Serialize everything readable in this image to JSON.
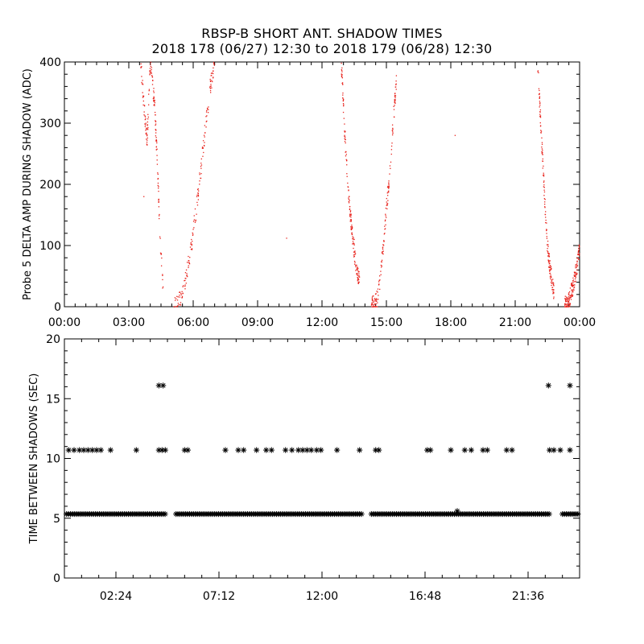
{
  "title": {
    "line1": "RBSP-B SHORT ANT. SHADOW TIMES",
    "line2": "2018 178 (06/27) 12:30 to 2018 179 (06/28) 12:30"
  },
  "chart_data": [
    {
      "type": "scatter",
      "ylabel": "Probe 5 DELTA AMP DURING SHADOW (ADC)",
      "xlabel": "",
      "xlim": [
        0,
        24
      ],
      "ylim": [
        0,
        400
      ],
      "xticks": [
        "00:00",
        "03:00",
        "06:00",
        "09:00",
        "12:00",
        "15:00",
        "18:00",
        "21:00",
        "00:00"
      ],
      "yticks": [
        "0",
        "100",
        "200",
        "300",
        "400"
      ],
      "marker": "dot",
      "color": "#e8231c",
      "bands": [
        {
          "x": [
            3.55,
            3.7,
            3.85,
            4.0,
            4.2,
            4.35,
            4.45,
            4.6
          ],
          "y": [
            400,
            330,
            270,
            400,
            330,
            220,
            110,
            30
          ]
        },
        {
          "x": [
            5.1,
            5.5,
            5.7,
            5.9,
            6.1,
            6.35,
            6.55,
            6.8,
            7.0
          ],
          "y": [
            3,
            20,
            55,
            95,
            150,
            220,
            290,
            360,
            400
          ]
        },
        {
          "x": [
            12.9,
            13.05,
            13.2,
            13.4,
            13.55,
            13.75
          ],
          "y": [
            400,
            290,
            200,
            120,
            75,
            40
          ]
        },
        {
          "x": [
            14.3,
            14.6,
            14.75,
            14.9,
            15.05,
            15.2,
            15.35,
            15.5
          ],
          "y": [
            2,
            15,
            60,
            120,
            180,
            240,
            320,
            380
          ]
        },
        {
          "x": [
            22.05,
            22.2,
            22.35,
            22.5,
            22.65,
            22.8
          ],
          "y": [
            400,
            290,
            190,
            100,
            55,
            25
          ]
        },
        {
          "x": [
            23.3,
            23.5,
            23.7,
            23.9,
            24.0
          ],
          "y": [
            2,
            10,
            35,
            70,
            95
          ]
        }
      ],
      "isolated_points": [
        {
          "x": 10.35,
          "y": 112
        },
        {
          "x": 18.2,
          "y": 280
        },
        {
          "x": 3.7,
          "y": 180
        },
        {
          "x": 13.5,
          "y": 110
        }
      ]
    },
    {
      "type": "scatter",
      "ylabel": "TIME BETWEEN SHADOWS (SEC)",
      "xlabel": "",
      "xlim": [
        0,
        24
      ],
      "ylim": [
        0,
        20
      ],
      "xticks": [
        "02:24",
        "07:12",
        "12:00",
        "16:48",
        "21:36"
      ],
      "xtick_values": [
        2.4,
        7.2,
        12.0,
        16.8,
        21.6
      ],
      "yticks": [
        "0",
        "5",
        "10",
        "15",
        "20"
      ],
      "marker": "asterisk",
      "color": "#000000",
      "baseline_segments": [
        {
          "x": [
            0.1,
            4.7
          ],
          "y": 5.35
        },
        {
          "x": 5.2,
          "x_end": 13.9,
          "y": 5.35
        },
        {
          "x": 14.3,
          "x_end": 22.6,
          "y": 5.35
        },
        {
          "x": 23.2,
          "x_end": 23.95,
          "y": 5.35
        }
      ],
      "points": [
        {
          "x": 0.2,
          "y": 10.7
        },
        {
          "x": 0.45,
          "y": 10.7
        },
        {
          "x": 0.7,
          "y": 10.7
        },
        {
          "x": 0.9,
          "y": 10.7
        },
        {
          "x": 1.1,
          "y": 10.7
        },
        {
          "x": 1.3,
          "y": 10.7
        },
        {
          "x": 1.5,
          "y": 10.7
        },
        {
          "x": 1.7,
          "y": 10.7
        },
        {
          "x": 2.15,
          "y": 10.7
        },
        {
          "x": 3.35,
          "y": 10.7
        },
        {
          "x": 4.4,
          "y": 10.7
        },
        {
          "x": 4.55,
          "y": 10.7
        },
        {
          "x": 4.7,
          "y": 10.7
        },
        {
          "x": 4.4,
          "y": 16.1
        },
        {
          "x": 4.6,
          "y": 16.1
        },
        {
          "x": 5.6,
          "y": 10.7
        },
        {
          "x": 5.75,
          "y": 10.7
        },
        {
          "x": 7.5,
          "y": 10.7
        },
        {
          "x": 8.1,
          "y": 10.7
        },
        {
          "x": 8.35,
          "y": 10.7
        },
        {
          "x": 8.95,
          "y": 10.7
        },
        {
          "x": 9.4,
          "y": 10.7
        },
        {
          "x": 9.65,
          "y": 10.7
        },
        {
          "x": 10.3,
          "y": 10.7
        },
        {
          "x": 10.6,
          "y": 10.7
        },
        {
          "x": 10.9,
          "y": 10.7
        },
        {
          "x": 11.1,
          "y": 10.7
        },
        {
          "x": 11.3,
          "y": 10.7
        },
        {
          "x": 11.5,
          "y": 10.7
        },
        {
          "x": 11.75,
          "y": 10.7
        },
        {
          "x": 11.95,
          "y": 10.7
        },
        {
          "x": 12.7,
          "y": 10.7
        },
        {
          "x": 13.75,
          "y": 10.7
        },
        {
          "x": 14.5,
          "y": 10.7
        },
        {
          "x": 14.65,
          "y": 10.7
        },
        {
          "x": 16.9,
          "y": 10.7
        },
        {
          "x": 17.05,
          "y": 10.7
        },
        {
          "x": 18.0,
          "y": 10.7
        },
        {
          "x": 18.65,
          "y": 10.7
        },
        {
          "x": 18.95,
          "y": 10.7
        },
        {
          "x": 19.5,
          "y": 10.7
        },
        {
          "x": 19.7,
          "y": 10.7
        },
        {
          "x": 20.6,
          "y": 10.7
        },
        {
          "x": 20.85,
          "y": 10.7
        },
        {
          "x": 22.6,
          "y": 10.7
        },
        {
          "x": 22.8,
          "y": 10.7
        },
        {
          "x": 23.1,
          "y": 10.7
        },
        {
          "x": 23.55,
          "y": 10.7
        },
        {
          "x": 22.55,
          "y": 16.1
        },
        {
          "x": 23.55,
          "y": 16.1
        },
        {
          "x": 18.3,
          "y": 5.6
        }
      ]
    }
  ]
}
